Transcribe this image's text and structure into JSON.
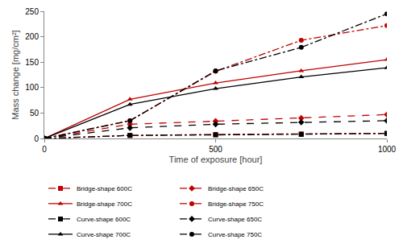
{
  "chart_data": {
    "type": "line",
    "x_label": "Time of exposure [hour]",
    "y_label": "Mass change [mg/cm²]",
    "x": [
      0,
      250,
      500,
      750,
      1000
    ],
    "xlim": [
      0,
      1000
    ],
    "xticks": [
      0,
      500,
      1000
    ],
    "ylim": [
      0,
      250
    ],
    "yticks": [
      0,
      50,
      100,
      150,
      200,
      250
    ],
    "grid": false,
    "legend": "bottom",
    "series": [
      {
        "name": "Bridge-shape 600C",
        "color": "#c00000",
        "marker": "square",
        "line_style": "dashdot",
        "values": [
          0,
          6,
          8,
          9,
          10
        ]
      },
      {
        "name": "Bridge-shape 650C",
        "color": "#c00000",
        "marker": "diamond",
        "line_style": "dash",
        "values": [
          0,
          28,
          34,
          40,
          47
        ]
      },
      {
        "name": "Bridge-shape 700C",
        "color": "#c00000",
        "marker": "triangle-up",
        "line_style": "solid",
        "values": [
          0,
          77,
          109,
          133,
          155
        ]
      },
      {
        "name": "Bridge-shape 750C",
        "color": "#c00000",
        "marker": "circle",
        "line_style": "dashdot",
        "values": [
          0,
          35,
          132,
          193,
          222
        ]
      },
      {
        "name": "Curve-shape 600C",
        "color": "#000000",
        "marker": "square",
        "line_style": "dashdot",
        "values": [
          0,
          6,
          7,
          8,
          10
        ]
      },
      {
        "name": "Curve-shape 650C",
        "color": "#000000",
        "marker": "diamond",
        "line_style": "dash",
        "values": [
          0,
          21,
          28,
          32,
          35
        ]
      },
      {
        "name": "Curve-shape 700C",
        "color": "#000000",
        "marker": "triangle-up",
        "line_style": "solid",
        "values": [
          0,
          67,
          98,
          121,
          139
        ]
      },
      {
        "name": "Curve-shape 750C",
        "color": "#000000",
        "marker": "circle",
        "line_style": "dashdot",
        "values": [
          0,
          35,
          133,
          179,
          245
        ]
      }
    ]
  }
}
